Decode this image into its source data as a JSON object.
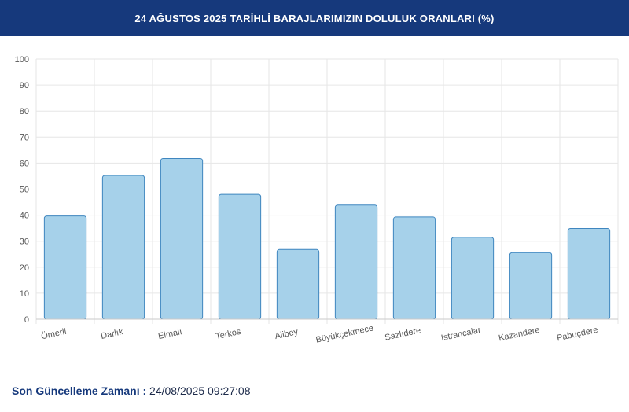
{
  "header": {
    "title": "24 AĞUSTOS 2025 TARİHLİ BARAJLARIMIZIN DOLULUK ORANLARI (%)"
  },
  "footer": {
    "label": "Son Güncelleme Zamanı :",
    "value": "24/08/2025 09:27:08"
  },
  "colors": {
    "header_bg": "#16397c",
    "bar_fill": "#a6d1ea",
    "bar_stroke": "#3f86bf",
    "grid": "#e6e6e6",
    "label_text": "#555555"
  },
  "chart_data": {
    "type": "bar",
    "title": "24 AĞUSTOS 2025 TARİHLİ BARAJLARIMIZIN DOLULUK ORANLARI (%)",
    "xlabel": "",
    "ylabel": "",
    "ylim": [
      0,
      100
    ],
    "yticks": [
      0,
      10,
      20,
      30,
      40,
      50,
      60,
      70,
      80,
      90,
      100
    ],
    "grid": true,
    "categories": [
      "Ömerli",
      "Darlık",
      "Elmalı",
      "Terkos",
      "Alibey",
      "Büyükçekmece",
      "Sazlıdere",
      "Istrancalar",
      "Kazandere",
      "Pabuçdere"
    ],
    "values": [
      39.7,
      55.3,
      61.8,
      48.0,
      26.8,
      43.9,
      39.3,
      31.5,
      25.6,
      34.9
    ]
  }
}
